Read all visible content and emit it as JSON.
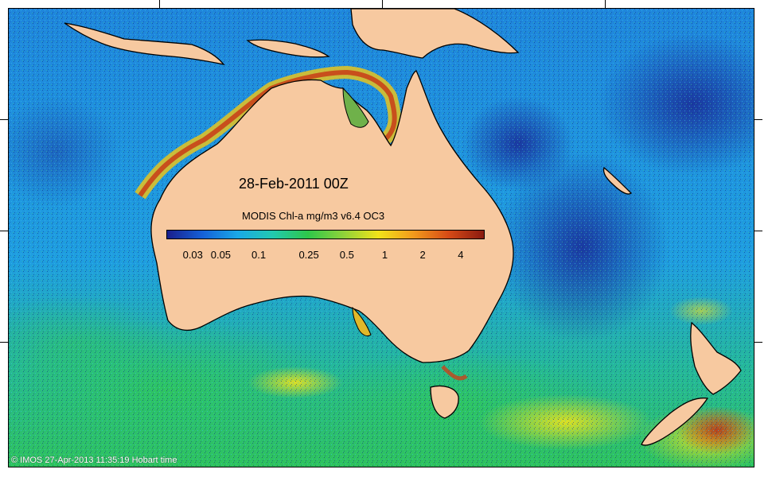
{
  "map": {
    "title": "28-Feb-2011 00Z",
    "colorbar_label": "MODIS Chl-a mg/m3 v6.4 OC3",
    "colorbar_ticks": [
      "0.03",
      "0.05",
      "0.1",
      "0.25",
      "0.5",
      "1",
      "2",
      "4"
    ],
    "colorbar_colors": [
      "#1a1f8c",
      "#1560d8",
      "#1aa8e8",
      "#22c9b0",
      "#2ec84a",
      "#8ed23a",
      "#f1e31a",
      "#f29a1c",
      "#d64a16",
      "#8a1a10"
    ],
    "land_color": "#f7c9a0",
    "ocean_colors": {
      "deep": "#1b3fb0",
      "mid": "#1e8fe0",
      "shelf": "#27c07a",
      "bloom": "#e6d21f",
      "coastal": "#c8421a"
    },
    "credit": "© IMOS 27-Apr-2013 11:35:19 Hobart time"
  }
}
